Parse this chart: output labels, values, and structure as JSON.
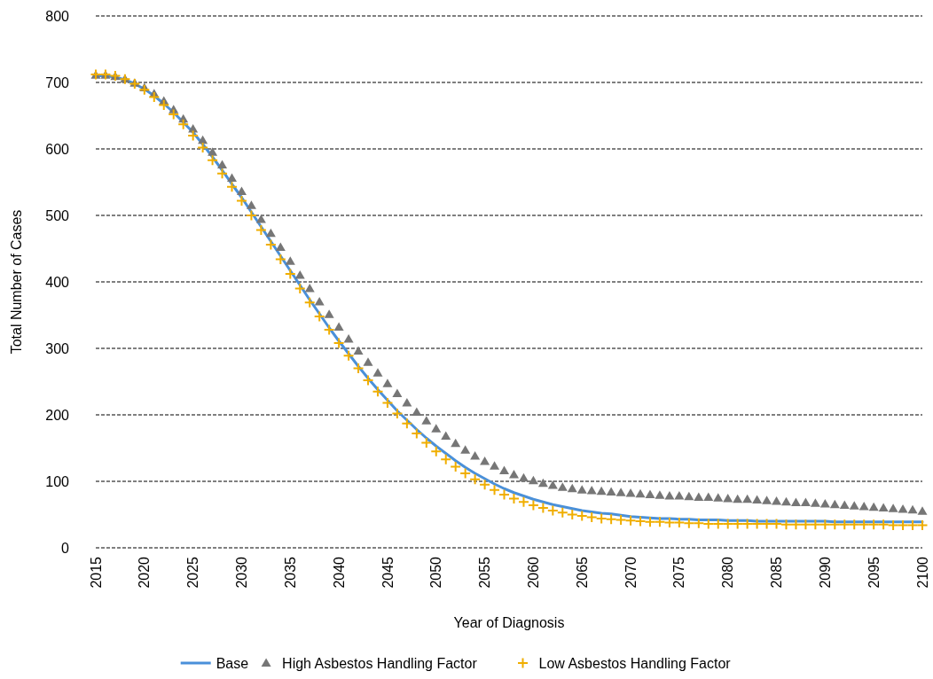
{
  "chart_data": {
    "type": "line",
    "xlabel": "Year of Diagnosis",
    "ylabel": "Total Number of Cases",
    "x": [
      2015,
      2016,
      2017,
      2018,
      2019,
      2020,
      2021,
      2022,
      2023,
      2024,
      2025,
      2026,
      2027,
      2028,
      2029,
      2030,
      2031,
      2032,
      2033,
      2034,
      2035,
      2036,
      2037,
      2038,
      2039,
      2040,
      2041,
      2042,
      2043,
      2044,
      2045,
      2046,
      2047,
      2048,
      2049,
      2050,
      2051,
      2052,
      2053,
      2054,
      2055,
      2056,
      2057,
      2058,
      2059,
      2060,
      2061,
      2062,
      2063,
      2064,
      2065,
      2066,
      2067,
      2068,
      2069,
      2070,
      2071,
      2072,
      2073,
      2074,
      2075,
      2076,
      2077,
      2078,
      2079,
      2080,
      2081,
      2082,
      2083,
      2084,
      2085,
      2086,
      2087,
      2088,
      2089,
      2090,
      2091,
      2092,
      2093,
      2094,
      2095,
      2096,
      2097,
      2098,
      2099,
      2100
    ],
    "xlim": [
      2015,
      2100
    ],
    "xticks": [
      2015,
      2020,
      2025,
      2030,
      2035,
      2040,
      2045,
      2050,
      2055,
      2060,
      2065,
      2070,
      2075,
      2080,
      2085,
      2090,
      2095,
      2100
    ],
    "ylim": [
      0,
      800
    ],
    "yticks": [
      0,
      100,
      200,
      300,
      400,
      500,
      600,
      700,
      800
    ],
    "grid": "y",
    "legend": "bottom",
    "series": [
      {
        "name": "Base",
        "color": "#4a90d9",
        "marker": "none",
        "line_style": "solid",
        "values": [
          710,
          710,
          708,
          704,
          698,
          690,
          680,
          668,
          655,
          640,
          625,
          607,
          588,
          568,
          547,
          527,
          505,
          483,
          461,
          439,
          417,
          395,
          373,
          352,
          331,
          311,
          292,
          273,
          255,
          238,
          222,
          206,
          192,
          178,
          165,
          153,
          142,
          131,
          121,
          112,
          104,
          96,
          89,
          83,
          78,
          73,
          69,
          65,
          62,
          59,
          56,
          54,
          52,
          51,
          49,
          47,
          46,
          45,
          44,
          44,
          43,
          43,
          42,
          42,
          42,
          41,
          41,
          41,
          40,
          40,
          40,
          40,
          40,
          40,
          40,
          40,
          39,
          39,
          39,
          39,
          39,
          39,
          39,
          39,
          39,
          39
        ]
      },
      {
        "name": "High Asbestos Handling Factor",
        "type": "scatter",
        "color": "#767676",
        "marker": "triangle",
        "values": [
          711,
          711,
          709,
          705,
          699,
          692,
          683,
          672,
          659,
          645,
          630,
          613,
          595,
          576,
          556,
          536,
          515,
          494,
          473,
          452,
          431,
          410,
          390,
          370,
          351,
          332,
          314,
          296,
          279,
          263,
          247,
          232,
          218,
          204,
          191,
          179,
          168,
          157,
          147,
          138,
          130,
          123,
          116,
          110,
          105,
          101,
          97,
          94,
          91,
          89,
          87,
          86,
          85,
          84,
          83,
          82,
          81,
          80,
          79,
          78,
          78,
          77,
          76,
          76,
          75,
          74,
          73,
          73,
          72,
          71,
          70,
          69,
          68,
          68,
          67,
          66,
          65,
          64,
          63,
          62,
          61,
          60,
          59,
          58,
          57,
          55
        ]
      },
      {
        "name": "Low Asbestos Handling Factor",
        "type": "scatter",
        "color": "#f0ae00",
        "marker": "cross",
        "values": [
          712,
          712,
          710,
          705,
          698,
          689,
          678,
          666,
          652,
          637,
          620,
          602,
          583,
          563,
          543,
          522,
          500,
          478,
          456,
          434,
          412,
          390,
          369,
          348,
          328,
          308,
          289,
          270,
          252,
          235,
          218,
          202,
          187,
          172,
          158,
          145,
          133,
          122,
          112,
          103,
          95,
          87,
          80,
          74,
          69,
          64,
          60,
          56,
          53,
          50,
          48,
          46,
          44,
          43,
          42,
          41,
          40,
          39,
          39,
          38,
          38,
          37,
          37,
          36,
          36,
          36,
          36,
          36,
          36,
          36,
          36,
          35,
          35,
          35,
          35,
          35,
          35,
          35,
          35,
          35,
          35,
          35,
          34,
          34,
          34,
          34
        ]
      }
    ]
  }
}
